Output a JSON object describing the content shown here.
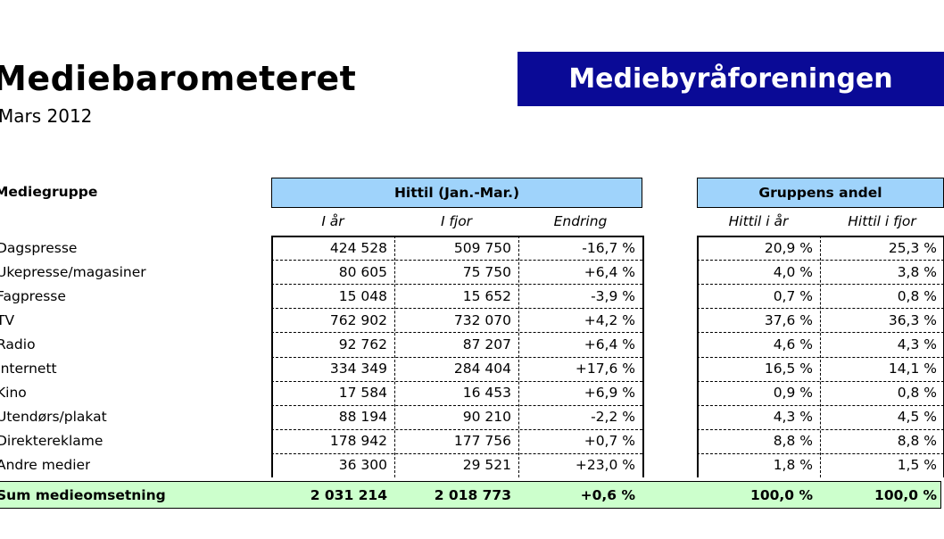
{
  "header": {
    "title": "Mediebarometeret",
    "subtitle": "Mars 2012",
    "brand": "Mediebyråforeningen"
  },
  "table": {
    "group_label": "Mediegruppe",
    "section_hittil": "Hittil (Jan.-Mar.)",
    "section_andel": "Gruppens andel",
    "columns": [
      "I år",
      "I fjor",
      "Endring",
      "Hittil i år",
      "Hittil i fjor"
    ],
    "rows": [
      {
        "name": "Dagspresse",
        "i_ar": "424 528",
        "i_fjor": "509 750",
        "endring": "-16,7 %",
        "andel_ar": "20,9 %",
        "andel_fjor": "25,3 %"
      },
      {
        "name": "Ukepresse/magasiner",
        "i_ar": "80 605",
        "i_fjor": "75 750",
        "endring": "+6,4 %",
        "andel_ar": "4,0 %",
        "andel_fjor": "3,8 %"
      },
      {
        "name": "Fagpresse",
        "i_ar": "15 048",
        "i_fjor": "15 652",
        "endring": "-3,9 %",
        "andel_ar": "0,7 %",
        "andel_fjor": "0,8 %"
      },
      {
        "name": "TV",
        "i_ar": "762 902",
        "i_fjor": "732 070",
        "endring": "+4,2 %",
        "andel_ar": "37,6 %",
        "andel_fjor": "36,3 %"
      },
      {
        "name": "Radio",
        "i_ar": "92 762",
        "i_fjor": "87 207",
        "endring": "+6,4 %",
        "andel_ar": "4,6 %",
        "andel_fjor": "4,3 %"
      },
      {
        "name": "Internett",
        "i_ar": "334 349",
        "i_fjor": "284 404",
        "endring": "+17,6 %",
        "andel_ar": "16,5 %",
        "andel_fjor": "14,1 %"
      },
      {
        "name": "Kino",
        "i_ar": "17 584",
        "i_fjor": "16 453",
        "endring": "+6,9 %",
        "andel_ar": "0,9 %",
        "andel_fjor": "0,8 %"
      },
      {
        "name": "Utendørs/plakat",
        "i_ar": "88 194",
        "i_fjor": "90 210",
        "endring": "-2,2 %",
        "andel_ar": "4,3 %",
        "andel_fjor": "4,5 %"
      },
      {
        "name": "Direktereklame",
        "i_ar": "178 942",
        "i_fjor": "177 756",
        "endring": "+0,7 %",
        "andel_ar": "8,8 %",
        "andel_fjor": "8,8 %"
      },
      {
        "name": "Andre medier",
        "i_ar": "36 300",
        "i_fjor": "29 521",
        "endring": "+23,0 %",
        "andel_ar": "1,8 %",
        "andel_fjor": "1,5 %"
      }
    ],
    "total": {
      "name": "Sum medieomsetning",
      "i_ar": "2 031 214",
      "i_fjor": "2 018 773",
      "endring": "+0,6 %",
      "andel_ar": "100,0 %",
      "andel_fjor": "100,0 %"
    }
  },
  "colors": {
    "brand_bg": "#0a0a96",
    "header_bg": "#9fd3fb",
    "total_bg": "#ccffcc"
  }
}
